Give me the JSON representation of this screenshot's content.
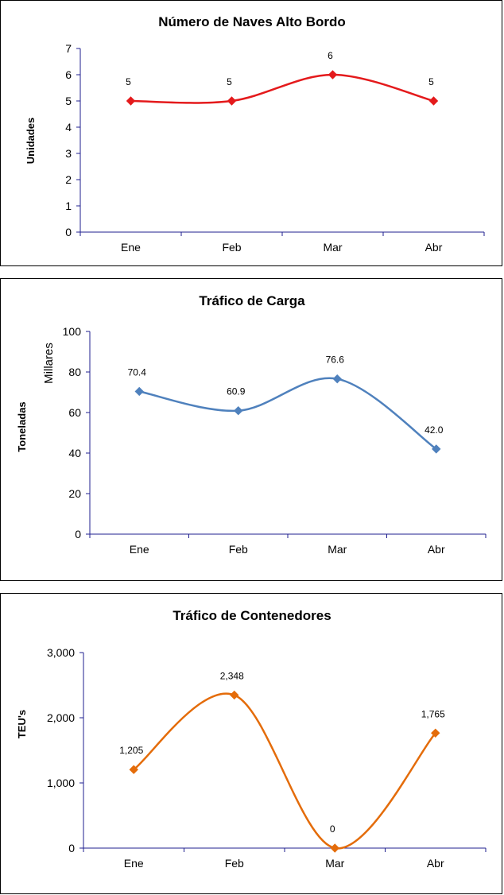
{
  "chart_data": [
    {
      "type": "line",
      "title": "Número de Naves Alto Bordo",
      "ylabel": "Unidades",
      "categories": [
        "Ene",
        "Feb",
        "Mar",
        "Abr"
      ],
      "values": [
        5,
        5,
        6,
        5
      ],
      "data_labels": [
        "5",
        "5",
        "6",
        "5"
      ],
      "yticks": [
        "0",
        "1",
        "2",
        "3",
        "4",
        "5",
        "6",
        "7"
      ],
      "ylim": [
        0,
        7
      ],
      "color": "#E41A1C",
      "smooth": true,
      "grid": false
    },
    {
      "type": "line",
      "title": "Tráfico de Carga",
      "ylabel": "Toneladas",
      "ylabel_secondary": "Millares",
      "categories": [
        "Ene",
        "Feb",
        "Mar",
        "Abr"
      ],
      "values": [
        70.4,
        60.9,
        76.6,
        42.0
      ],
      "data_labels": [
        "70.4",
        "60.9",
        "76.6",
        "42.0"
      ],
      "yticks": [
        "0",
        "20",
        "40",
        "60",
        "80",
        "100"
      ],
      "ylim": [
        0,
        100
      ],
      "color": "#4F81BD",
      "smooth": true,
      "grid": false
    },
    {
      "type": "line",
      "title": "Tráfico de Contenedores",
      "ylabel": "TEU's",
      "categories": [
        "Ene",
        "Feb",
        "Mar",
        "Abr"
      ],
      "values": [
        1205,
        2348,
        0,
        1765
      ],
      "data_labels": [
        "1,205",
        "2,348",
        "0",
        "1,765"
      ],
      "yticks": [
        "0",
        "1,000",
        "2,000",
        "3,000"
      ],
      "ylim": [
        0,
        3000
      ],
      "color": "#E46C0A",
      "smooth": true,
      "grid": false
    }
  ]
}
